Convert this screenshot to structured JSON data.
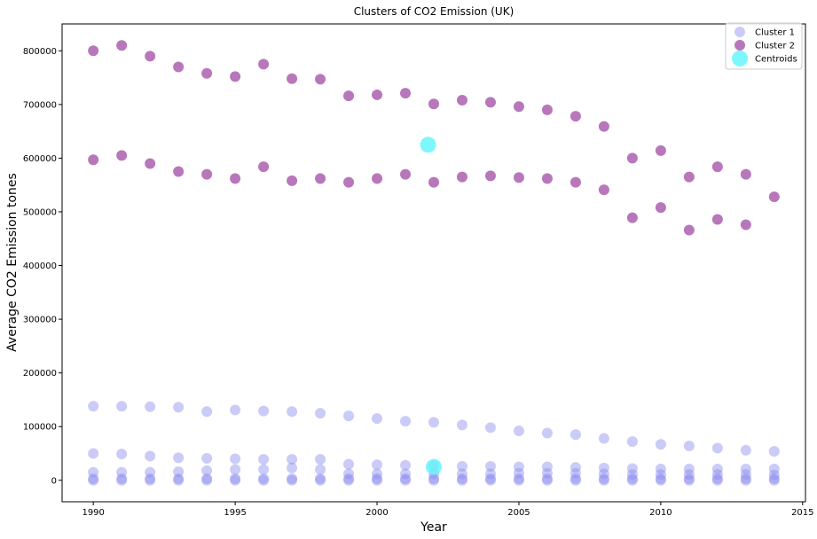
{
  "chart_data": {
    "type": "scatter",
    "title": "Clusters of CO2 Emission (UK)",
    "xlabel": "Year",
    "ylabel": "Average CO2 Emission tones",
    "xlim": [
      1988.9,
      2015.1
    ],
    "ylim": [
      -40000,
      850000
    ],
    "xticks": [
      1990,
      1995,
      2000,
      2005,
      2010,
      2015
    ],
    "yticks": [
      0,
      100000,
      200000,
      300000,
      400000,
      500000,
      600000,
      700000,
      800000
    ],
    "grid": false,
    "legend_position": "top-right",
    "x": [
      1990,
      1991,
      1992,
      1993,
      1994,
      1995,
      1996,
      1997,
      1998,
      1999,
      2000,
      2001,
      2002,
      2003,
      2004,
      2005,
      2006,
      2007,
      2008,
      2009,
      2010,
      2011,
      2012,
      2013,
      2014
    ],
    "series": [
      {
        "name": "Cluster 1",
        "color": "#8c8cf0",
        "groups": [
          [
            138000,
            138000,
            137000,
            136000,
            128000,
            131000,
            129000,
            128000,
            125000,
            120000,
            115000,
            110000,
            108000,
            103000,
            98000,
            92000,
            88000,
            85000,
            78000,
            72000,
            67000,
            64000,
            60000,
            56000,
            54000
          ],
          [
            50000,
            49000,
            45000,
            42000,
            41000,
            40000,
            39000,
            39000,
            39000,
            30000,
            29000,
            28000,
            27000,
            26000,
            26000,
            25000,
            25000,
            24000,
            23000,
            22000,
            21000,
            21000,
            21000,
            21000,
            21000
          ],
          [
            15000,
            15000,
            15000,
            16000,
            18000,
            20000,
            20000,
            23000,
            20000,
            12000,
            12000,
            12000,
            12000,
            12000,
            12000,
            13000,
            13000,
            13000,
            12000,
            11000,
            11000,
            11000,
            11000,
            11000,
            10000
          ],
          [
            3000,
            3000,
            3000,
            3000,
            3000,
            3000,
            3000,
            3000,
            3000,
            3000,
            3000,
            3000,
            3000,
            3000,
            3000,
            3000,
            3000,
            3000,
            3000,
            3000,
            3000,
            3000,
            3000,
            3000,
            3000
          ],
          [
            0,
            0,
            0,
            0,
            0,
            0,
            0,
            0,
            0,
            0,
            0,
            0,
            0,
            0,
            0,
            0,
            0,
            0,
            0,
            0,
            0,
            0,
            0,
            0,
            0
          ]
        ]
      },
      {
        "name": "Cluster 2",
        "color": "#9a3d9e",
        "groups": [
          [
            800000,
            810000,
            790000,
            770000,
            758000,
            752000,
            775000,
            748000,
            747000,
            716000,
            718000,
            721000,
            701000,
            708000,
            704000,
            696000,
            690000,
            678000,
            659000,
            600000,
            614000,
            565000,
            584000,
            570000,
            528000
          ],
          [
            597000,
            605000,
            590000,
            575000,
            570000,
            562000,
            584000,
            558000,
            562000,
            555000,
            562000,
            570000,
            555000,
            565000,
            567000,
            564000,
            562000,
            555000,
            541000,
            489000,
            508000,
            466000,
            486000,
            476000,
            null
          ]
        ]
      }
    ],
    "centroids": {
      "name": "Centroids",
      "color": "#5ef5f9",
      "points": [
        {
          "x": 2001.8,
          "y": 625000
        },
        {
          "x": 2002.0,
          "y": 25000
        }
      ]
    }
  }
}
